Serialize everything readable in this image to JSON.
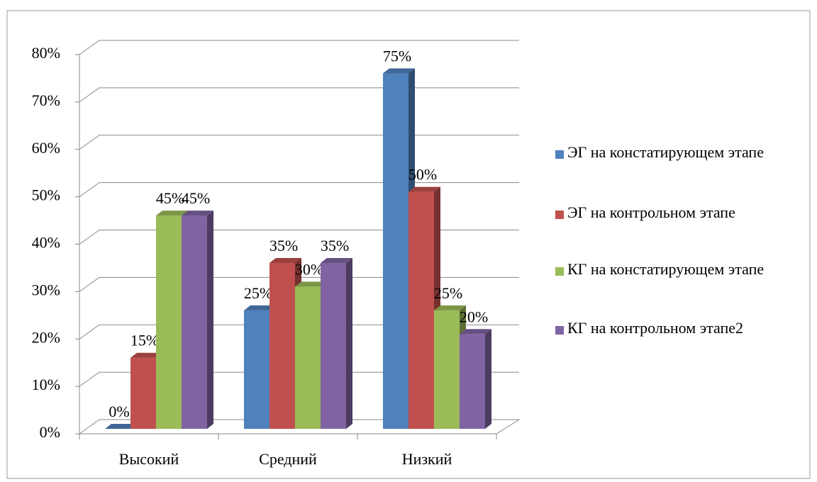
{
  "chart_data": {
    "type": "bar3d",
    "categories": [
      "Высокий",
      "Средний",
      "Низкий"
    ],
    "series": [
      {
        "name": "ЭГ на констатирующем этапе",
        "color": "#4f81bd",
        "values": [
          0,
          25,
          75
        ],
        "value_labels": [
          "0%",
          "25%",
          "75%"
        ]
      },
      {
        "name": "ЭГ на контрольном этапе",
        "color": "#c0504d",
        "values": [
          15,
          35,
          50
        ],
        "value_labels": [
          "15%",
          "35%",
          "50%"
        ]
      },
      {
        "name": "КГ на констатирующем этапе",
        "color": "#9bbb59",
        "values": [
          45,
          30,
          25
        ],
        "value_labels": [
          "45%",
          "30%",
          "25%"
        ]
      },
      {
        "name": "КГ на контрольном этапе2",
        "color": "#8064a2",
        "values": [
          45,
          35,
          20
        ],
        "value_labels": [
          "45%",
          "35%",
          "20%"
        ]
      }
    ],
    "ylim": [
      0,
      80
    ],
    "yticks": [
      {
        "value": 0,
        "label": "0%"
      },
      {
        "value": 10,
        "label": "10%"
      },
      {
        "value": 20,
        "label": "20%"
      },
      {
        "value": 30,
        "label": "30%"
      },
      {
        "value": 40,
        "label": "40%"
      },
      {
        "value": 50,
        "label": "50%"
      },
      {
        "value": 60,
        "label": "60%"
      },
      {
        "value": 70,
        "label": "70%"
      },
      {
        "value": 80,
        "label": "80%"
      }
    ],
    "grid": true,
    "legend": "right"
  }
}
